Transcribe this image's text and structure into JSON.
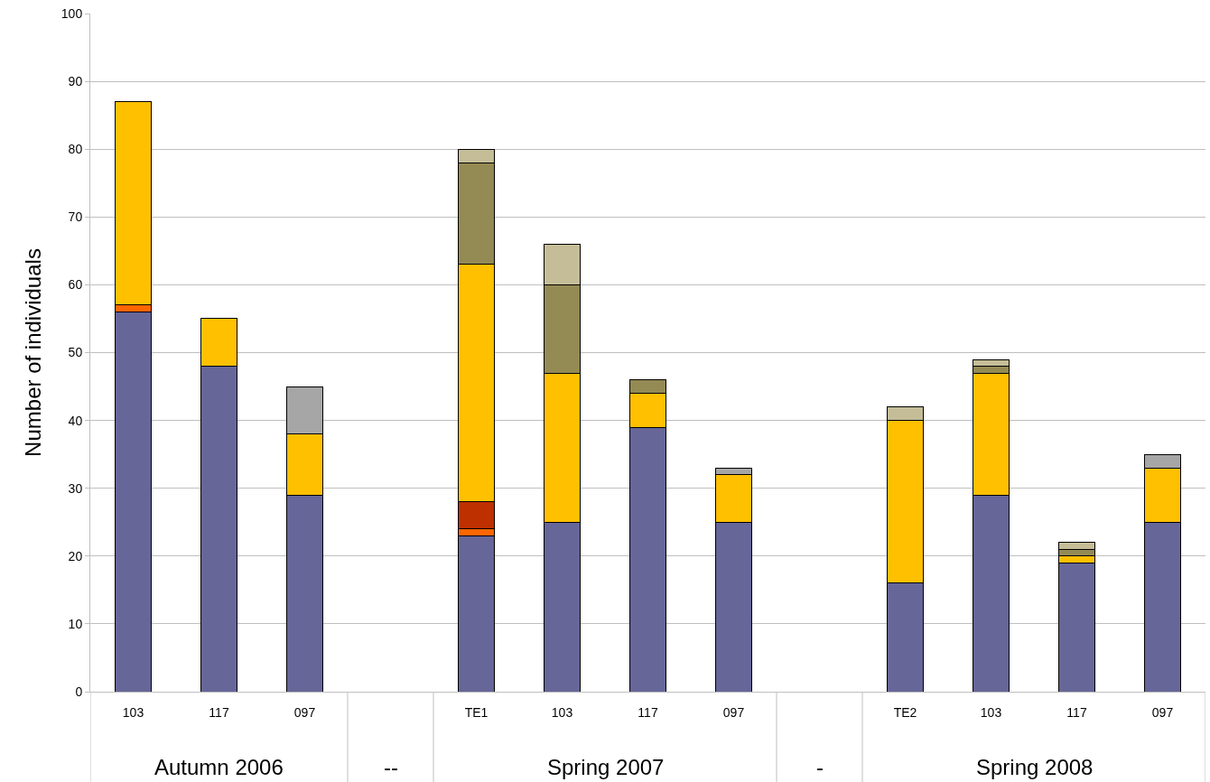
{
  "chart_data": {
    "type": "bar",
    "stacked": true,
    "ylabel": "Number of individuals",
    "categories": [
      "103",
      "117",
      "097",
      null,
      "TE1",
      "103",
      "117",
      "097",
      null,
      "TE2",
      "103",
      "117",
      "097"
    ],
    "series": [
      {
        "color": "#666699",
        "values": [
          56,
          48,
          29,
          null,
          23,
          25,
          39,
          25,
          null,
          16,
          29,
          19,
          25
        ]
      },
      {
        "color": "#ff6600",
        "values": [
          1,
          null,
          null,
          null,
          1,
          null,
          null,
          null,
          null,
          null,
          null,
          null,
          null
        ]
      },
      {
        "color": "#bf3000",
        "values": [
          null,
          null,
          null,
          null,
          4,
          null,
          null,
          null,
          null,
          null,
          null,
          null,
          null
        ]
      },
      {
        "color": "#ffc000",
        "values": [
          30,
          7,
          9,
          null,
          35,
          22,
          5,
          7,
          null,
          24,
          18,
          1,
          8
        ]
      },
      {
        "color": "#948a54",
        "values": [
          null,
          null,
          null,
          null,
          15,
          13,
          2,
          null,
          null,
          null,
          1,
          1,
          null
        ]
      },
      {
        "color": "#c4bd97",
        "values": [
          null,
          null,
          null,
          null,
          2,
          6,
          null,
          null,
          null,
          2,
          1,
          1,
          null
        ]
      },
      {
        "color": "#a6a6a6",
        "values": [
          null,
          null,
          7,
          null,
          null,
          null,
          null,
          1,
          null,
          null,
          null,
          null,
          2
        ]
      }
    ],
    "ylim": [
      0,
      100
    ],
    "yticks": [
      0,
      10,
      20,
      30,
      40,
      50,
      60,
      70,
      80,
      90,
      100
    ],
    "grid": "y",
    "annotations": [
      "Autumn 2006",
      "--",
      "Spring 2007",
      "-",
      "Spring 2008"
    ]
  }
}
